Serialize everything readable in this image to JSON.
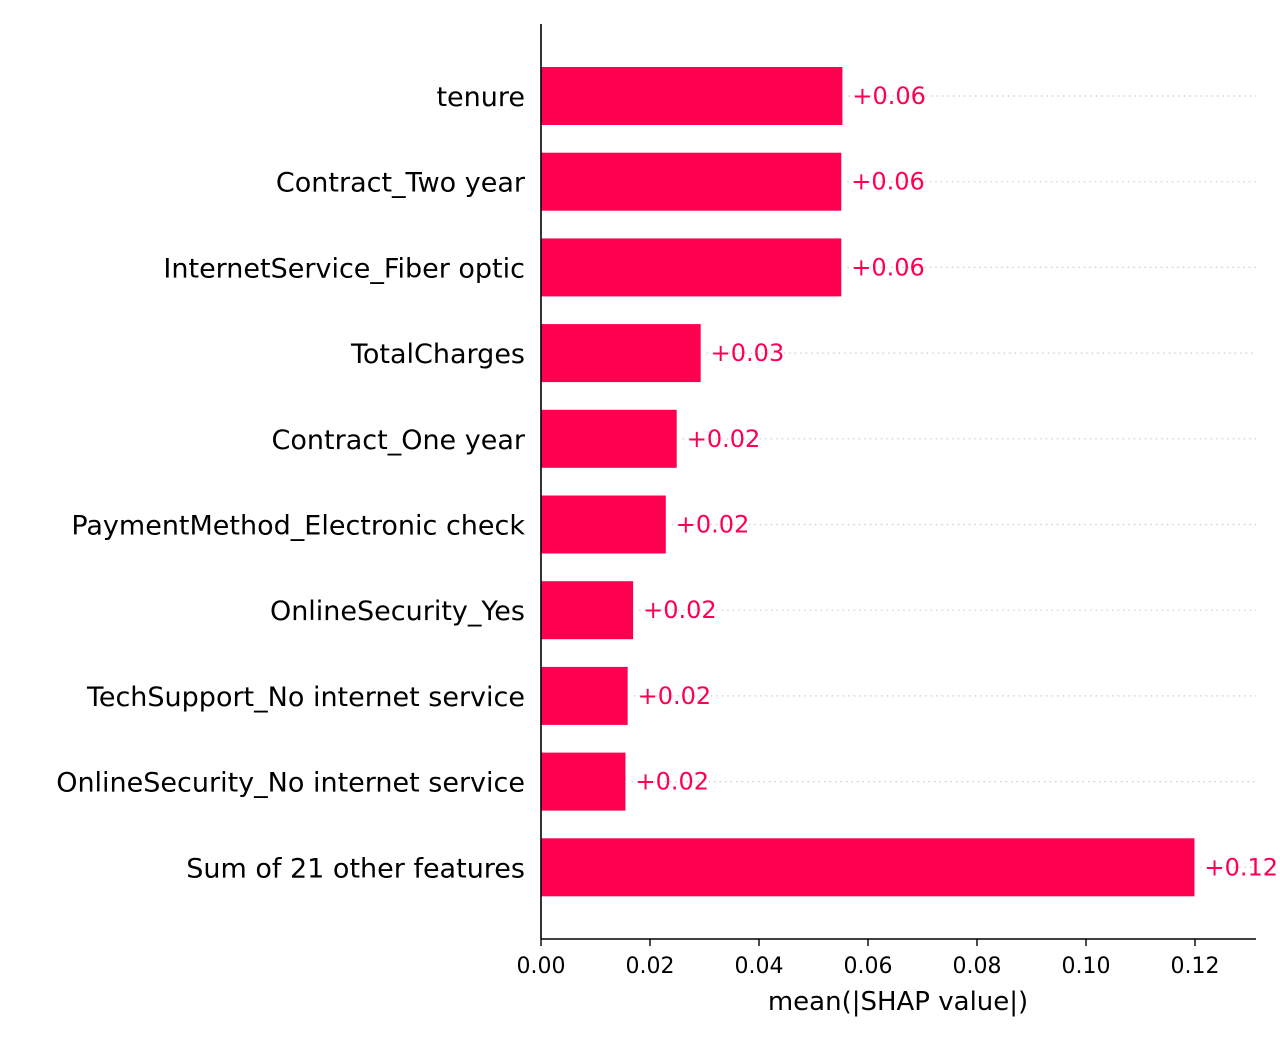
{
  "chart_data": {
    "type": "bar",
    "orientation": "horizontal",
    "categories": [
      "tenure",
      "Contract_Two year",
      "InternetService_Fiber optic",
      "TotalCharges",
      "Contract_One year",
      "PaymentMethod_Electronic check",
      "OnlineSecurity_Yes",
      "TechSupport_No internet service",
      "OnlineSecurity_No internet service",
      "Sum of 21 other features"
    ],
    "values": [
      0.0553,
      0.0551,
      0.0551,
      0.0293,
      0.0249,
      0.0229,
      0.0169,
      0.0159,
      0.0155,
      0.1199
    ],
    "value_labels": [
      "+0.06",
      "+0.06",
      "+0.06",
      "+0.03",
      "+0.02",
      "+0.02",
      "+0.02",
      "+0.02",
      "+0.02",
      "+0.12"
    ],
    "xlabel": "mean(|SHAP value|)",
    "ylabel": "",
    "xlim": [
      0,
      0.132
    ],
    "xticks": [
      0,
      0.02,
      0.04,
      0.06,
      0.08,
      0.1,
      0.12
    ],
    "xtick_labels": [
      "0.00",
      "0.02",
      "0.04",
      "0.06",
      "0.08",
      "0.10",
      "0.12"
    ],
    "grid": false,
    "legend": "none",
    "bar_color": "#ff0051",
    "label_color": "#ff0051",
    "guide_line_color": "#cccccc"
  }
}
